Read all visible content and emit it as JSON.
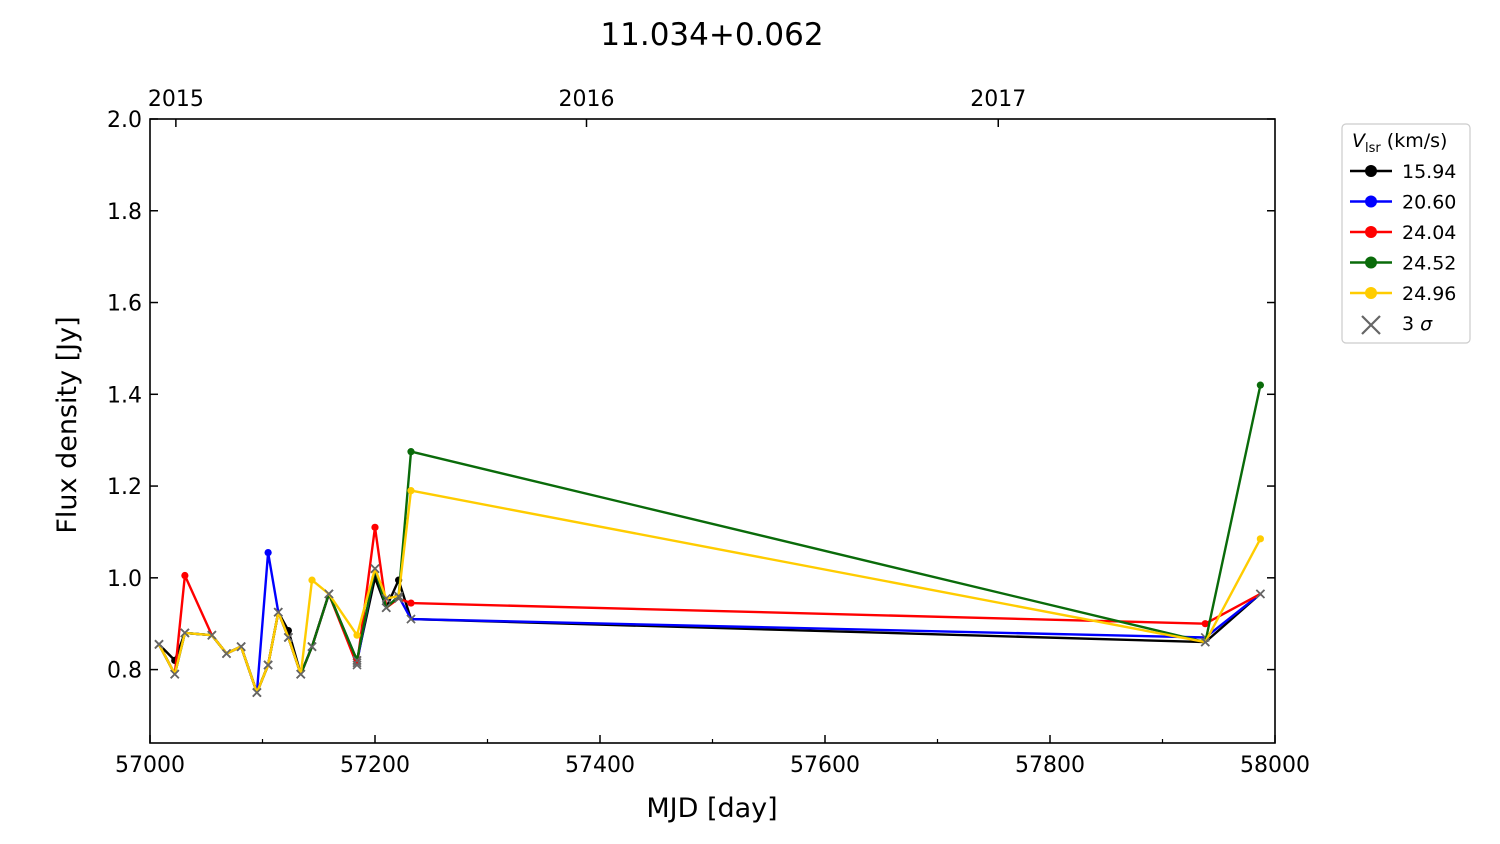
{
  "chart_data": {
    "type": "line",
    "title": "11.034+0.062",
    "xlabel": "MJD [day]",
    "ylabel": "Flux density [Jy]",
    "xlim": [
      57000,
      58000
    ],
    "ylim": [
      0.64,
      2.0
    ],
    "x_ticks": [
      57000,
      57200,
      57400,
      57600,
      57800,
      58000
    ],
    "x_minor_ticks": [
      57100,
      57300,
      57500,
      57700,
      57900
    ],
    "y_ticks": [
      0.8,
      1.0,
      1.2,
      1.4,
      1.6,
      1.8,
      2.0
    ],
    "y_tick_labels": [
      "0.8",
      "1.0",
      "1.2",
      "1.4",
      "1.6",
      "1.8",
      "2.0"
    ],
    "top_axis": {
      "ticks": [
        {
          "x": 57023,
          "label": "2015"
        },
        {
          "x": 57388,
          "label": "2016"
        },
        {
          "x": 57754,
          "label": "2017"
        }
      ]
    },
    "legend": {
      "title_symbol": "V",
      "title_subscript": "lsr",
      "title_unit": "(km/s)",
      "placement": "outside-right",
      "upper_limit_symbol": "3",
      "upper_limit_sigma": "σ",
      "upper_limit_color": "#666666"
    },
    "grid": false,
    "series": [
      {
        "name": "15.94",
        "color": "#000000",
        "x": [
          57008,
          57022,
          57031,
          57055,
          57068,
          57081,
          57095,
          57105,
          57114,
          57123,
          57134,
          57144,
          57159,
          57184,
          57200,
          57210,
          57221,
          57232,
          57938,
          57987
        ],
        "y": [
          0.855,
          0.82,
          0.88,
          0.875,
          0.835,
          0.85,
          0.75,
          0.81,
          0.925,
          0.885,
          0.79,
          0.85,
          0.965,
          0.82,
          1.0,
          0.935,
          0.995,
          0.91,
          0.86,
          0.965
        ],
        "limit": [
          true,
          false,
          true,
          true,
          true,
          true,
          true,
          true,
          true,
          false,
          true,
          true,
          true,
          true,
          false,
          true,
          false,
          true,
          true,
          true
        ]
      },
      {
        "name": "20.60",
        "color": "#0000ff",
        "x": [
          57008,
          57022,
          57031,
          57055,
          57068,
          57081,
          57095,
          57105,
          57114,
          57123,
          57134,
          57144,
          57159,
          57184,
          57200,
          57210,
          57221,
          57232,
          57938,
          57987
        ],
        "y": [
          0.855,
          0.79,
          0.88,
          0.875,
          0.835,
          0.85,
          0.75,
          1.055,
          0.925,
          0.87,
          0.79,
          0.85,
          0.965,
          0.815,
          1.02,
          0.935,
          0.96,
          0.91,
          0.87,
          0.965
        ],
        "limit": [
          true,
          true,
          true,
          true,
          true,
          true,
          true,
          false,
          true,
          true,
          true,
          true,
          true,
          true,
          true,
          true,
          true,
          true,
          true,
          true
        ]
      },
      {
        "name": "24.04",
        "color": "#ff0000",
        "x": [
          57008,
          57022,
          57031,
          57055,
          57068,
          57081,
          57095,
          57105,
          57114,
          57123,
          57134,
          57144,
          57159,
          57184,
          57200,
          57210,
          57221,
          57232,
          57938,
          57987
        ],
        "y": [
          0.855,
          0.79,
          1.005,
          0.875,
          0.835,
          0.85,
          0.75,
          0.81,
          0.925,
          0.87,
          0.79,
          0.85,
          0.965,
          0.81,
          1.11,
          0.935,
          0.955,
          0.945,
          0.9,
          0.965
        ],
        "limit": [
          true,
          true,
          false,
          true,
          true,
          true,
          true,
          true,
          true,
          true,
          true,
          true,
          true,
          true,
          false,
          true,
          true,
          false,
          false,
          true
        ]
      },
      {
        "name": "24.52",
        "color": "#0a6b0a",
        "x": [
          57008,
          57022,
          57031,
          57055,
          57068,
          57081,
          57095,
          57105,
          57114,
          57123,
          57134,
          57144,
          57159,
          57184,
          57200,
          57210,
          57221,
          57232,
          57938,
          57987
        ],
        "y": [
          0.855,
          0.79,
          0.88,
          0.875,
          0.835,
          0.85,
          0.75,
          0.81,
          0.925,
          0.87,
          0.79,
          0.85,
          0.965,
          0.82,
          1.02,
          0.935,
          0.96,
          1.275,
          0.86,
          1.42
        ],
        "limit": [
          true,
          true,
          true,
          true,
          true,
          true,
          true,
          true,
          true,
          true,
          true,
          true,
          true,
          true,
          true,
          true,
          true,
          false,
          true,
          false
        ]
      },
      {
        "name": "24.96",
        "color": "#ffcc00",
        "x": [
          57008,
          57022,
          57031,
          57055,
          57068,
          57081,
          57095,
          57105,
          57114,
          57123,
          57134,
          57144,
          57159,
          57184,
          57200,
          57210,
          57221,
          57232,
          57938,
          57987
        ],
        "y": [
          0.855,
          0.79,
          0.88,
          0.875,
          0.835,
          0.85,
          0.75,
          0.81,
          0.925,
          0.87,
          0.79,
          0.995,
          0.965,
          0.875,
          1.02,
          0.955,
          0.96,
          1.19,
          0.86,
          1.085
        ],
        "limit": [
          true,
          true,
          true,
          true,
          true,
          true,
          true,
          true,
          true,
          true,
          true,
          false,
          true,
          false,
          true,
          true,
          true,
          false,
          true,
          false
        ]
      }
    ]
  }
}
